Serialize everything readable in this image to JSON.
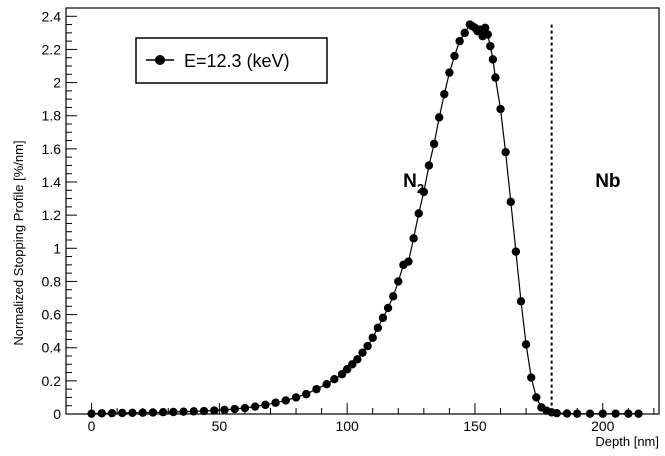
{
  "chart_data": {
    "type": "scatter",
    "title": "",
    "xlabel": "Depth [nm]",
    "ylabel": "Normalized Stopping Profile [%/nm]",
    "xlim": [
      -10,
      222
    ],
    "ylim": [
      0,
      2.45
    ],
    "xticks": [
      0,
      50,
      100,
      150,
      200
    ],
    "xtick_labels": [
      "0",
      "50",
      "100",
      "150",
      "200"
    ],
    "yticks": [
      0,
      0.2,
      0.4,
      0.6,
      0.8,
      1,
      1.2,
      1.4,
      1.6,
      1.8,
      2,
      2.2,
      2.4
    ],
    "ytick_labels": [
      "0",
      "0.2",
      "0.4",
      "0.6",
      "0.8",
      "1",
      "1.2",
      "1.4",
      "1.6",
      "1.8",
      "2",
      "2.2",
      "2.4"
    ],
    "grid": false,
    "legend": {
      "position": "top-left",
      "entries": [
        "E=12.3 (keV)"
      ]
    },
    "boundary": {
      "depth": 180,
      "style": "dotted"
    },
    "region_labels": {
      "left": {
        "main": "N",
        "sub": "2",
        "x": 126,
        "y": 1.37
      },
      "right": {
        "main": "Nb",
        "x": 202,
        "y": 1.37
      }
    },
    "series": [
      {
        "name": "E=12.3 (keV)",
        "color": "#000000",
        "marker": "circle",
        "x": [
          0,
          4,
          8,
          12,
          16,
          20,
          24,
          28,
          32,
          36,
          40,
          44,
          48,
          52,
          56,
          60,
          64,
          68,
          72,
          76,
          80,
          84,
          88,
          92,
          95,
          98,
          100,
          102,
          104,
          106,
          108,
          110,
          112,
          114,
          116,
          118,
          120,
          122,
          124,
          126,
          128,
          130,
          132,
          134,
          136,
          138,
          140,
          142,
          144,
          146,
          148,
          149,
          150,
          151,
          152,
          153,
          154,
          155,
          156,
          157,
          158,
          160,
          162,
          164,
          166,
          168,
          170,
          172,
          174,
          176,
          178,
          180,
          182,
          186,
          190,
          195,
          200,
          205,
          210,
          214
        ],
        "y": [
          0.002,
          0.004,
          0.005,
          0.006,
          0.007,
          0.008,
          0.009,
          0.011,
          0.012,
          0.014,
          0.016,
          0.018,
          0.021,
          0.025,
          0.03,
          0.036,
          0.045,
          0.055,
          0.068,
          0.082,
          0.1,
          0.12,
          0.15,
          0.18,
          0.21,
          0.24,
          0.27,
          0.3,
          0.33,
          0.37,
          0.41,
          0.46,
          0.52,
          0.58,
          0.64,
          0.71,
          0.8,
          0.9,
          0.92,
          1.06,
          1.21,
          1.34,
          1.5,
          1.63,
          1.79,
          1.93,
          2.06,
          2.16,
          2.25,
          2.3,
          2.35,
          2.34,
          2.33,
          2.31,
          2.32,
          2.28,
          2.33,
          2.29,
          2.22,
          2.14,
          2.03,
          1.84,
          1.58,
          1.28,
          0.98,
          0.68,
          0.42,
          0.22,
          0.1,
          0.04,
          0.02,
          0.01,
          0.005,
          0.003,
          0.002,
          0.002,
          0.002,
          0.002,
          0.002,
          0.002
        ]
      }
    ]
  }
}
